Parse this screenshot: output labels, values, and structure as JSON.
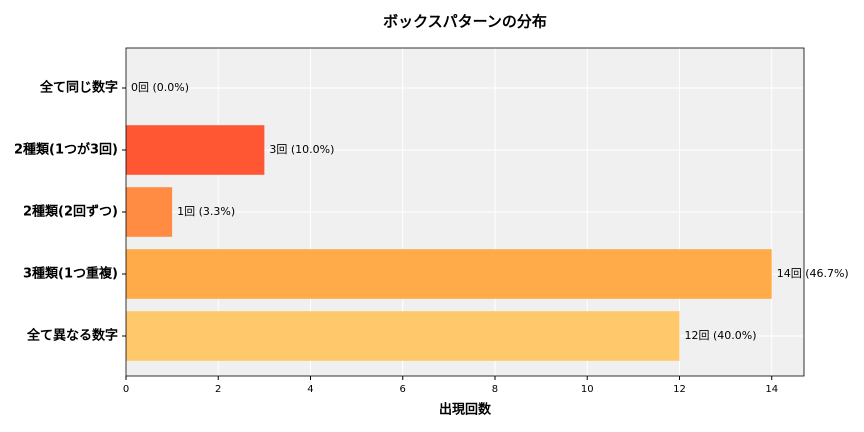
{
  "chart_data": {
    "type": "barh",
    "title": "ボックスパターンの分布",
    "xlabel": "出現回数",
    "categories": [
      "全て同じ数字",
      "2種類(1つが3回)",
      "2種類(2回ずつ)",
      "3種類(1つ重複)",
      "全て異なる数字"
    ],
    "values": [
      0,
      3,
      1,
      14,
      12
    ],
    "value_labels": [
      "0回 (0.0%)",
      "3回 (10.0%)",
      "1回 (3.3%)",
      "14回 (46.7%)",
      "12回 (40.0%)"
    ],
    "colors": [
      "#ff3d2e",
      "#ff5733",
      "#ff8c42",
      "#ffab4a",
      "#ffc96b"
    ],
    "xlim": [
      0,
      14.7
    ],
    "xticks": [
      0,
      2,
      4,
      6,
      8,
      10,
      12,
      14
    ],
    "grid": true
  }
}
